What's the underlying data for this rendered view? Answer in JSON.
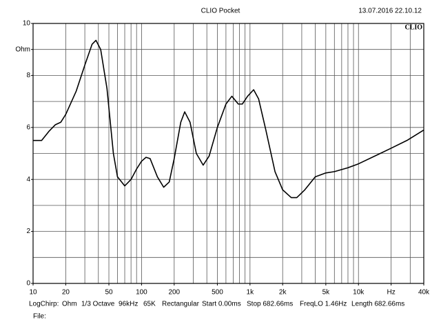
{
  "chart_data": {
    "type": "line",
    "title": "CLIO Pocket",
    "timestamp": "13.07.2016 22.10.12",
    "logo": "CLIO",
    "x": [
      10,
      12,
      14,
      16,
      18,
      20,
      25,
      30,
      35,
      38,
      42,
      48,
      55,
      60,
      70,
      80,
      90,
      100,
      110,
      120,
      140,
      160,
      180,
      200,
      230,
      250,
      280,
      320,
      370,
      420,
      500,
      600,
      680,
      780,
      850,
      950,
      1080,
      1200,
      1400,
      1700,
      2000,
      2400,
      2700,
      3200,
      4000,
      5000,
      6000,
      8000,
      10000,
      15000,
      20000,
      28000,
      40000
    ],
    "values": [
      5.5,
      5.5,
      5.85,
      6.1,
      6.2,
      6.5,
      7.4,
      8.4,
      9.2,
      9.35,
      9.0,
      7.5,
      5.0,
      4.1,
      3.75,
      4.0,
      4.4,
      4.7,
      4.85,
      4.8,
      4.1,
      3.7,
      3.9,
      4.8,
      6.2,
      6.6,
      6.2,
      5.0,
      4.55,
      4.9,
      6.0,
      6.9,
      7.2,
      6.9,
      6.9,
      7.2,
      7.45,
      7.1,
      5.9,
      4.3,
      3.6,
      3.3,
      3.3,
      3.6,
      4.1,
      4.25,
      4.3,
      4.45,
      4.6,
      4.95,
      5.2,
      5.5,
      5.9
    ],
    "color": "#000000",
    "xscale": "log",
    "xlim": [
      10,
      40000
    ],
    "xticks": [
      10,
      20,
      50,
      100,
      200,
      500,
      {
        "value": 1000,
        "label": "1k"
      },
      {
        "value": 2000,
        "label": "2k"
      },
      {
        "value": 5000,
        "label": "5k"
      },
      {
        "value": 10000,
        "label": "10k"
      },
      {
        "value": 20000,
        "label": "Hz"
      },
      {
        "value": 40000,
        "label": "40k"
      }
    ],
    "xgrid": [
      20,
      30,
      40,
      50,
      60,
      70,
      80,
      90,
      100,
      200,
      300,
      400,
      500,
      600,
      700,
      800,
      900,
      1000,
      2000,
      3000,
      4000,
      5000,
      6000,
      7000,
      8000,
      9000,
      10000,
      20000,
      30000
    ],
    "ylim": [
      0,
      10
    ],
    "yticks": [
      0,
      2,
      4,
      6,
      8,
      {
        "value": 9,
        "label": "Ohm"
      },
      10
    ],
    "ygrid": [
      1,
      2,
      3,
      4,
      5,
      6,
      7,
      8,
      9
    ],
    "footer": [
      "LogChirp:",
      "Ohm",
      "1/3 Octave",
      "96kHz",
      "65K",
      "Rectangular",
      "Start 0.00ms",
      "Stop 682.66ms",
      "FreqLO 1.46Hz",
      "Length 682.66ms"
    ],
    "file_label": "File:"
  }
}
